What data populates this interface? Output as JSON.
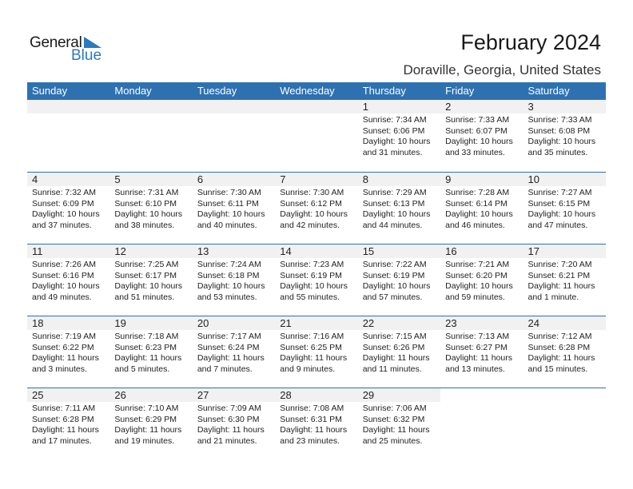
{
  "logo": {
    "word1": "General",
    "word2": "Blue",
    "color": "#2a7abf"
  },
  "title": "February 2024",
  "location": "Doraville, Georgia, United States",
  "colors": {
    "header": "#2e71b1",
    "date_band": "#f1f1f1"
  },
  "weekdays": [
    "Sunday",
    "Monday",
    "Tuesday",
    "Wednesday",
    "Thursday",
    "Friday",
    "Saturday"
  ],
  "weeks": [
    [
      null,
      null,
      null,
      null,
      {
        "day": "1",
        "lines": [
          "Sunrise: 7:34 AM",
          "Sunset: 6:06 PM",
          "Daylight: 10 hours",
          "and 31 minutes."
        ]
      },
      {
        "day": "2",
        "lines": [
          "Sunrise: 7:33 AM",
          "Sunset: 6:07 PM",
          "Daylight: 10 hours",
          "and 33 minutes."
        ]
      },
      {
        "day": "3",
        "lines": [
          "Sunrise: 7:33 AM",
          "Sunset: 6:08 PM",
          "Daylight: 10 hours",
          "and 35 minutes."
        ]
      }
    ],
    [
      {
        "day": "4",
        "lines": [
          "Sunrise: 7:32 AM",
          "Sunset: 6:09 PM",
          "Daylight: 10 hours",
          "and 37 minutes."
        ]
      },
      {
        "day": "5",
        "lines": [
          "Sunrise: 7:31 AM",
          "Sunset: 6:10 PM",
          "Daylight: 10 hours",
          "and 38 minutes."
        ]
      },
      {
        "day": "6",
        "lines": [
          "Sunrise: 7:30 AM",
          "Sunset: 6:11 PM",
          "Daylight: 10 hours",
          "and 40 minutes."
        ]
      },
      {
        "day": "7",
        "lines": [
          "Sunrise: 7:30 AM",
          "Sunset: 6:12 PM",
          "Daylight: 10 hours",
          "and 42 minutes."
        ]
      },
      {
        "day": "8",
        "lines": [
          "Sunrise: 7:29 AM",
          "Sunset: 6:13 PM",
          "Daylight: 10 hours",
          "and 44 minutes."
        ]
      },
      {
        "day": "9",
        "lines": [
          "Sunrise: 7:28 AM",
          "Sunset: 6:14 PM",
          "Daylight: 10 hours",
          "and 46 minutes."
        ]
      },
      {
        "day": "10",
        "lines": [
          "Sunrise: 7:27 AM",
          "Sunset: 6:15 PM",
          "Daylight: 10 hours",
          "and 47 minutes."
        ]
      }
    ],
    [
      {
        "day": "11",
        "lines": [
          "Sunrise: 7:26 AM",
          "Sunset: 6:16 PM",
          "Daylight: 10 hours",
          "and 49 minutes."
        ]
      },
      {
        "day": "12",
        "lines": [
          "Sunrise: 7:25 AM",
          "Sunset: 6:17 PM",
          "Daylight: 10 hours",
          "and 51 minutes."
        ]
      },
      {
        "day": "13",
        "lines": [
          "Sunrise: 7:24 AM",
          "Sunset: 6:18 PM",
          "Daylight: 10 hours",
          "and 53 minutes."
        ]
      },
      {
        "day": "14",
        "lines": [
          "Sunrise: 7:23 AM",
          "Sunset: 6:19 PM",
          "Daylight: 10 hours",
          "and 55 minutes."
        ]
      },
      {
        "day": "15",
        "lines": [
          "Sunrise: 7:22 AM",
          "Sunset: 6:19 PM",
          "Daylight: 10 hours",
          "and 57 minutes."
        ]
      },
      {
        "day": "16",
        "lines": [
          "Sunrise: 7:21 AM",
          "Sunset: 6:20 PM",
          "Daylight: 10 hours",
          "and 59 minutes."
        ]
      },
      {
        "day": "17",
        "lines": [
          "Sunrise: 7:20 AM",
          "Sunset: 6:21 PM",
          "Daylight: 11 hours",
          "and 1 minute."
        ]
      }
    ],
    [
      {
        "day": "18",
        "lines": [
          "Sunrise: 7:19 AM",
          "Sunset: 6:22 PM",
          "Daylight: 11 hours",
          "and 3 minutes."
        ]
      },
      {
        "day": "19",
        "lines": [
          "Sunrise: 7:18 AM",
          "Sunset: 6:23 PM",
          "Daylight: 11 hours",
          "and 5 minutes."
        ]
      },
      {
        "day": "20",
        "lines": [
          "Sunrise: 7:17 AM",
          "Sunset: 6:24 PM",
          "Daylight: 11 hours",
          "and 7 minutes."
        ]
      },
      {
        "day": "21",
        "lines": [
          "Sunrise: 7:16 AM",
          "Sunset: 6:25 PM",
          "Daylight: 11 hours",
          "and 9 minutes."
        ]
      },
      {
        "day": "22",
        "lines": [
          "Sunrise: 7:15 AM",
          "Sunset: 6:26 PM",
          "Daylight: 11 hours",
          "and 11 minutes."
        ]
      },
      {
        "day": "23",
        "lines": [
          "Sunrise: 7:13 AM",
          "Sunset: 6:27 PM",
          "Daylight: 11 hours",
          "and 13 minutes."
        ]
      },
      {
        "day": "24",
        "lines": [
          "Sunrise: 7:12 AM",
          "Sunset: 6:28 PM",
          "Daylight: 11 hours",
          "and 15 minutes."
        ]
      }
    ],
    [
      {
        "day": "25",
        "lines": [
          "Sunrise: 7:11 AM",
          "Sunset: 6:28 PM",
          "Daylight: 11 hours",
          "and 17 minutes."
        ]
      },
      {
        "day": "26",
        "lines": [
          "Sunrise: 7:10 AM",
          "Sunset: 6:29 PM",
          "Daylight: 11 hours",
          "and 19 minutes."
        ]
      },
      {
        "day": "27",
        "lines": [
          "Sunrise: 7:09 AM",
          "Sunset: 6:30 PM",
          "Daylight: 11 hours",
          "and 21 minutes."
        ]
      },
      {
        "day": "28",
        "lines": [
          "Sunrise: 7:08 AM",
          "Sunset: 6:31 PM",
          "Daylight: 11 hours",
          "and 23 minutes."
        ]
      },
      {
        "day": "29",
        "lines": [
          "Sunrise: 7:06 AM",
          "Sunset: 6:32 PM",
          "Daylight: 11 hours",
          "and 25 minutes."
        ]
      },
      null,
      null
    ]
  ]
}
